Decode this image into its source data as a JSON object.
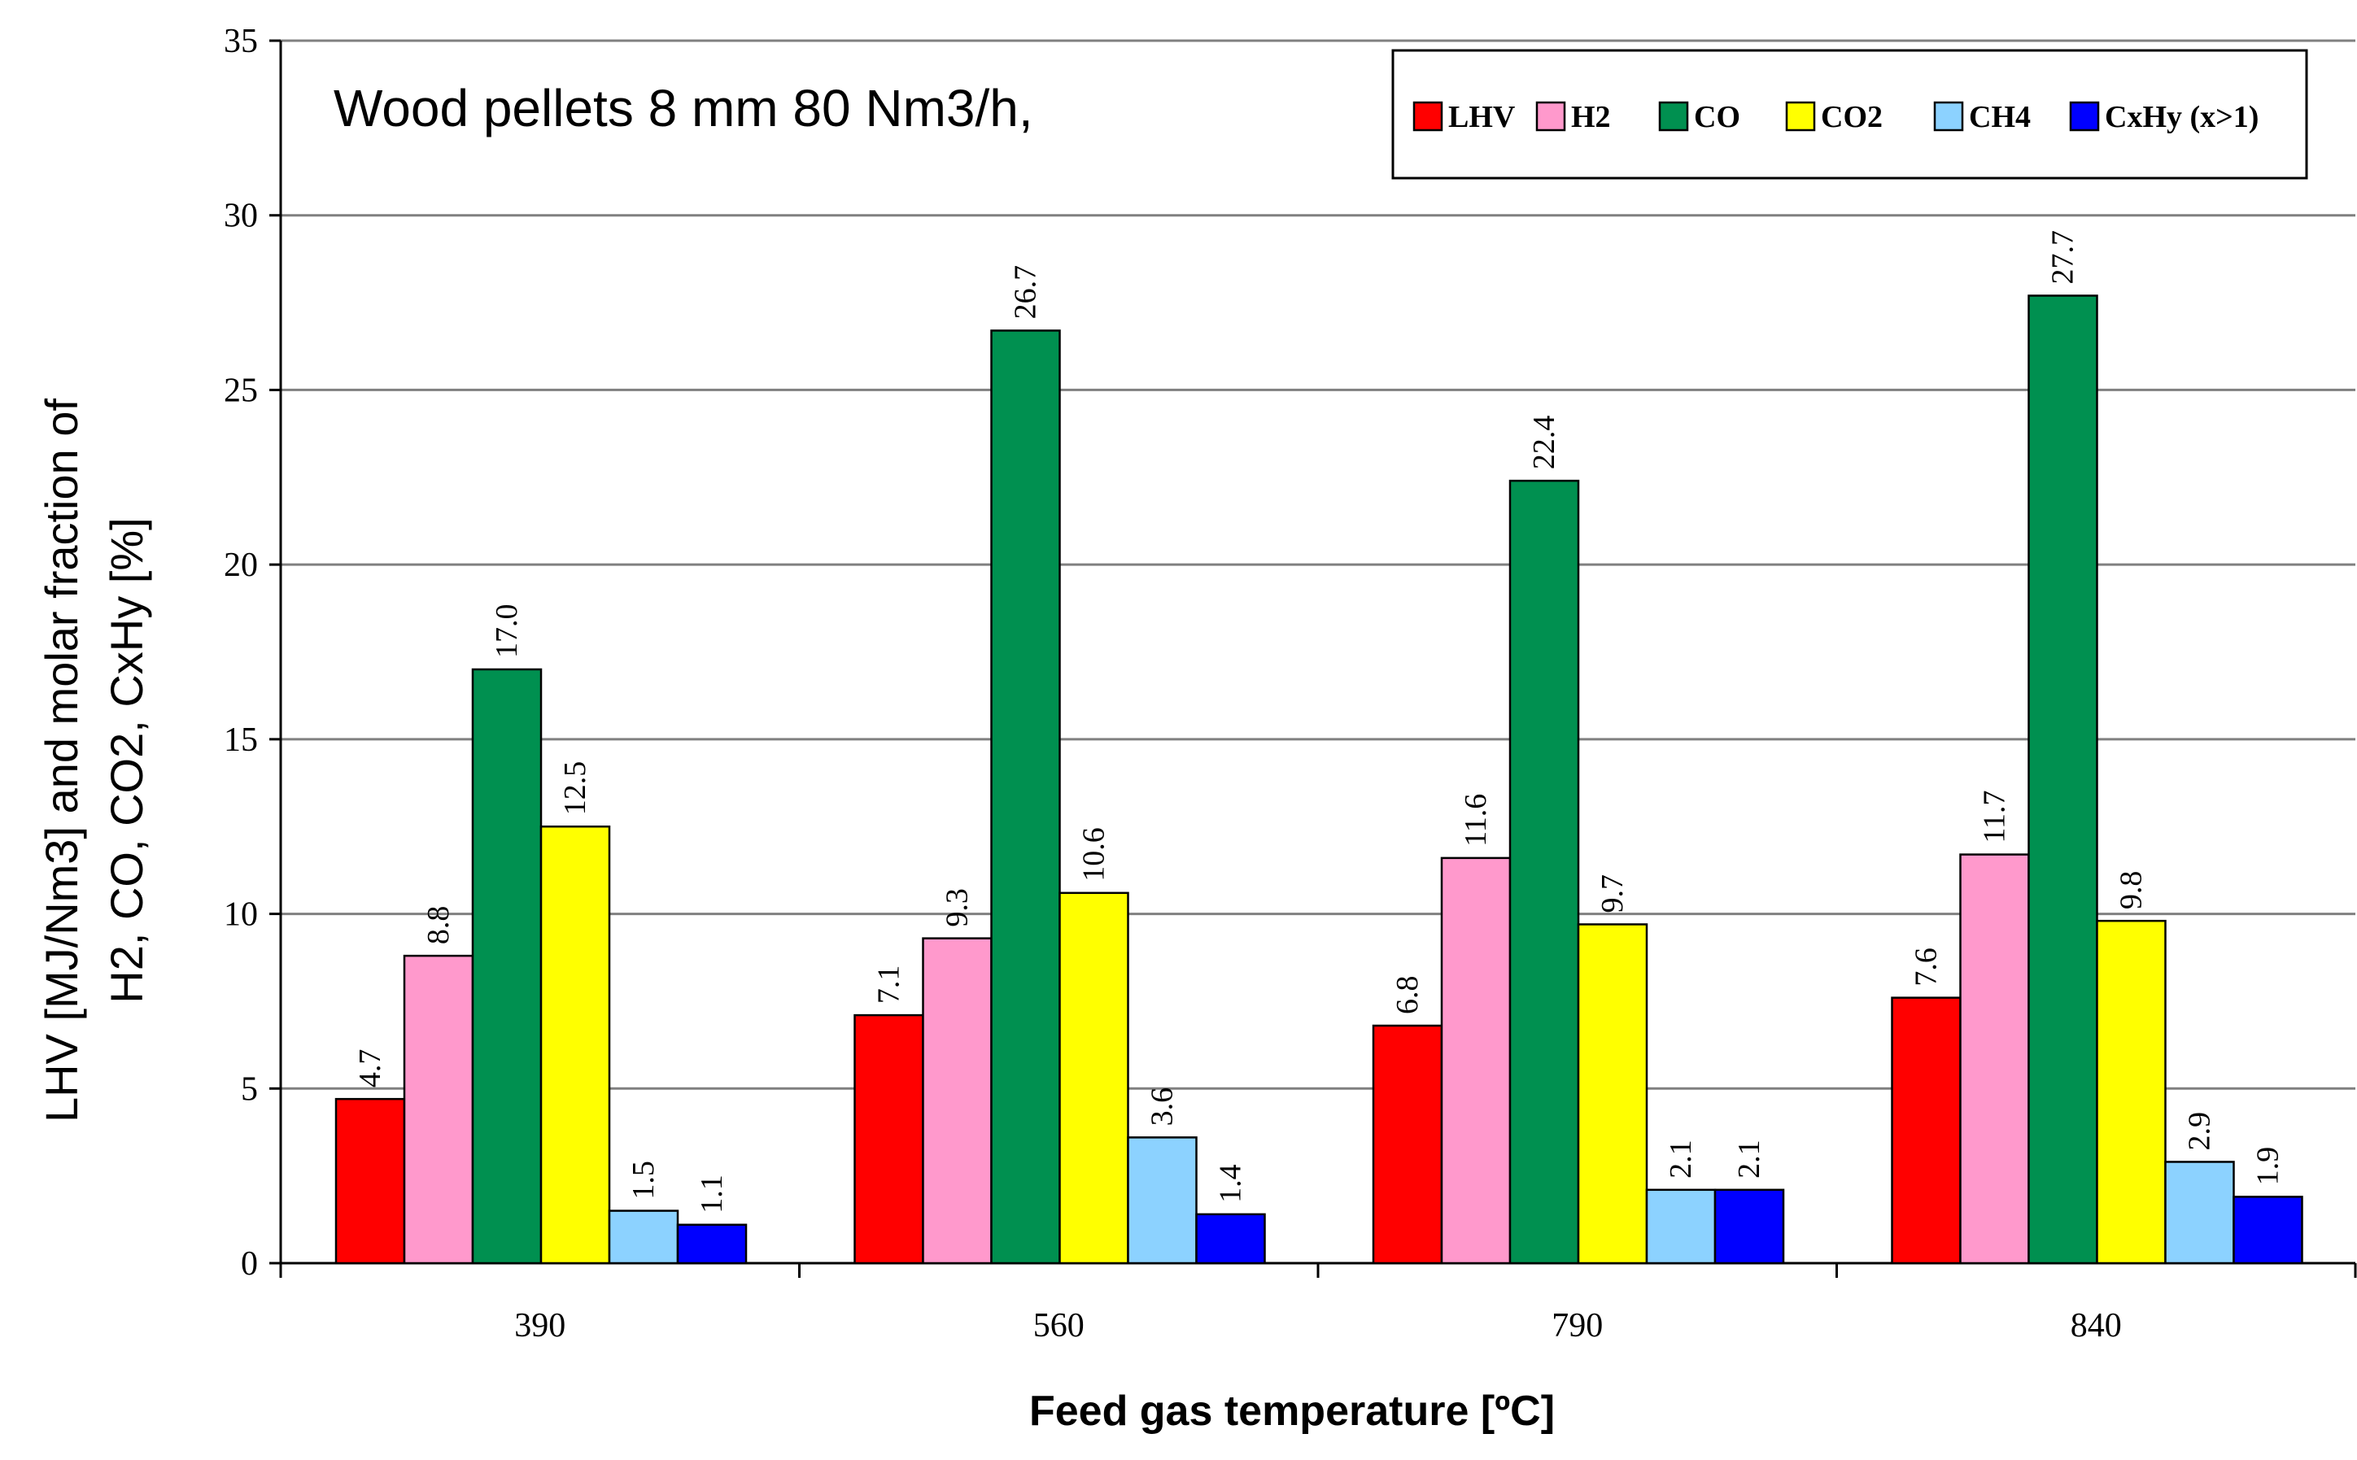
{
  "chart_data": {
    "type": "bar",
    "title": "",
    "annotation": "Wood pellets 8 mm 80 Nm3/h,",
    "xlabel": "Feed gas temperature [ºC]",
    "ylabel_line1": "LHV [MJ/Nm3] and molar fraction of",
    "ylabel_line2": "H2, CO, CO2, CxHy [%]",
    "ylim": [
      0,
      35
    ],
    "yticks": [
      0,
      5,
      10,
      15,
      20,
      25,
      30,
      35
    ],
    "grid": true,
    "legend_position": "top-right",
    "categories": [
      "390",
      "560",
      "790",
      "840"
    ],
    "series": [
      {
        "name": "LHV",
        "color": "#ff0000",
        "values": [
          4.7,
          7.1,
          6.8,
          7.6
        ]
      },
      {
        "name": "H2",
        "color": "#ff99cc",
        "values": [
          8.8,
          9.3,
          11.6,
          11.7
        ]
      },
      {
        "name": "CO",
        "color": "#009050",
        "values": [
          17.0,
          26.7,
          22.4,
          27.7
        ]
      },
      {
        "name": "CO2",
        "color": "#ffff00",
        "values": [
          12.5,
          10.6,
          9.7,
          9.8
        ]
      },
      {
        "name": "CH4",
        "color": "#8cd2ff",
        "values": [
          1.5,
          3.6,
          2.1,
          2.9
        ]
      },
      {
        "name": "CxHy (x>1)",
        "color": "#0000ff",
        "values": [
          1.1,
          1.4,
          2.1,
          1.9
        ]
      }
    ]
  }
}
